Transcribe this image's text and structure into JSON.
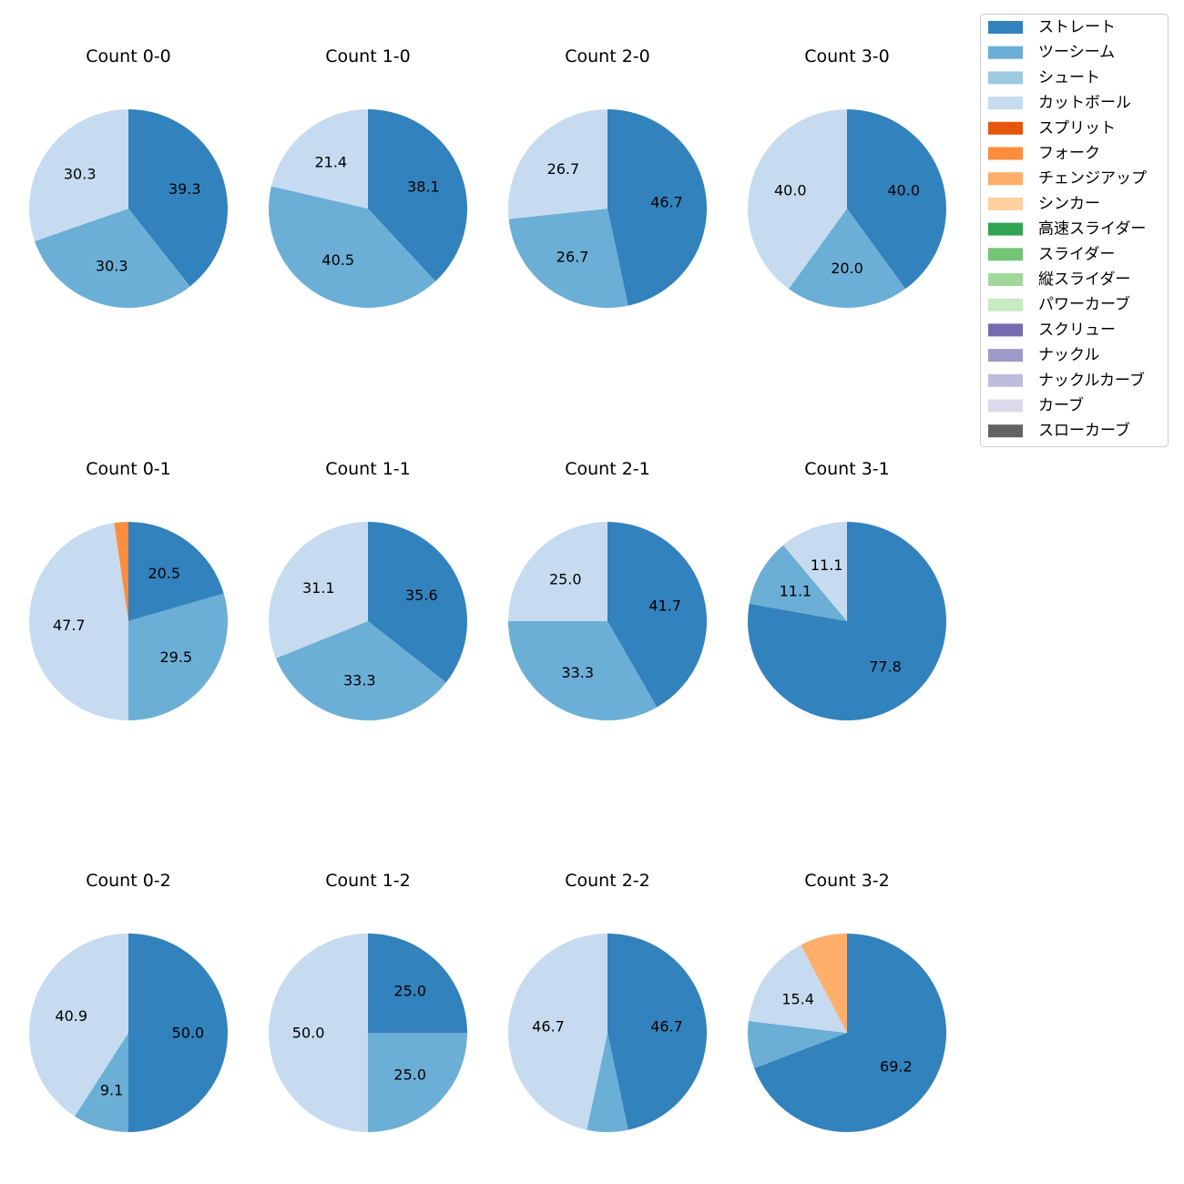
{
  "colors": {
    "ストレート": "#3182bd",
    "ツーシーム": "#6baed6",
    "シュート": "#9ecae1",
    "カットボール": "#c6dbef",
    "スプリット": "#e6550d",
    "フォーク": "#fd8d3c",
    "チェンジアップ": "#fdae6b",
    "シンカー": "#fdd0a2",
    "高速スライダー": "#31a354",
    "スライダー": "#74c476",
    "縦スライダー": "#a1d99b",
    "パワーカーブ": "#c7e9c0",
    "スクリュー": "#756bb1",
    "ナックル": "#9e9ac8",
    "ナックルカーブ": "#bcbddc",
    "カーブ": "#dadaeb",
    "スローカーブ": "#636363"
  },
  "legend": {
    "items": [
      "ストレート",
      "ツーシーム",
      "シュート",
      "カットボール",
      "スプリット",
      "フォーク",
      "チェンジアップ",
      "シンカー",
      "高速スライダー",
      "スライダー",
      "縦スライダー",
      "パワーカーブ",
      "スクリュー",
      "ナックル",
      "ナックルカーブ",
      "カーブ",
      "スローカーブ"
    ]
  },
  "chart_data": [
    {
      "type": "pie",
      "title": "Count 0-0",
      "slices": [
        {
          "label": "ストレート",
          "value": 39.3,
          "text": "39.3"
        },
        {
          "label": "ツーシーム",
          "value": 30.3,
          "text": "30.3"
        },
        {
          "label": "カットボール",
          "value": 30.3,
          "text": "30.3"
        }
      ]
    },
    {
      "type": "pie",
      "title": "Count 1-0",
      "slices": [
        {
          "label": "ストレート",
          "value": 38.1,
          "text": "38.1"
        },
        {
          "label": "ツーシーム",
          "value": 40.5,
          "text": "40.5"
        },
        {
          "label": "カットボール",
          "value": 21.4,
          "text": "21.4"
        }
      ]
    },
    {
      "type": "pie",
      "title": "Count 2-0",
      "slices": [
        {
          "label": "ストレート",
          "value": 46.7,
          "text": "46.7"
        },
        {
          "label": "ツーシーム",
          "value": 26.7,
          "text": "26.7"
        },
        {
          "label": "カットボール",
          "value": 26.7,
          "text": "26.7"
        }
      ]
    },
    {
      "type": "pie",
      "title": "Count 3-0",
      "slices": [
        {
          "label": "ストレート",
          "value": 40.0,
          "text": "40.0"
        },
        {
          "label": "ツーシーム",
          "value": 20.0,
          "text": "20.0"
        },
        {
          "label": "カットボール",
          "value": 40.0,
          "text": "40.0"
        }
      ]
    },
    {
      "type": "pie",
      "title": "Count 0-1",
      "slices": [
        {
          "label": "ストレート",
          "value": 20.5,
          "text": "20.5"
        },
        {
          "label": "ツーシーム",
          "value": 29.5,
          "text": "29.5"
        },
        {
          "label": "カットボール",
          "value": 47.7,
          "text": "47.7"
        },
        {
          "label": "フォーク",
          "value": 2.3,
          "text": ""
        }
      ]
    },
    {
      "type": "pie",
      "title": "Count 1-1",
      "slices": [
        {
          "label": "ストレート",
          "value": 35.6,
          "text": "35.6"
        },
        {
          "label": "ツーシーム",
          "value": 33.3,
          "text": "33.3"
        },
        {
          "label": "カットボール",
          "value": 31.1,
          "text": "31.1"
        }
      ]
    },
    {
      "type": "pie",
      "title": "Count 2-1",
      "slices": [
        {
          "label": "ストレート",
          "value": 41.7,
          "text": "41.7"
        },
        {
          "label": "ツーシーム",
          "value": 33.3,
          "text": "33.3"
        },
        {
          "label": "カットボール",
          "value": 25.0,
          "text": "25.0"
        }
      ]
    },
    {
      "type": "pie",
      "title": "Count 3-1",
      "slices": [
        {
          "label": "ストレート",
          "value": 77.8,
          "text": "77.8"
        },
        {
          "label": "ツーシーム",
          "value": 11.1,
          "text": "11.1"
        },
        {
          "label": "カットボール",
          "value": 11.1,
          "text": "11.1"
        }
      ]
    },
    {
      "type": "pie",
      "title": "Count 0-2",
      "slices": [
        {
          "label": "ストレート",
          "value": 50.0,
          "text": "50.0"
        },
        {
          "label": "ツーシーム",
          "value": 9.1,
          "text": "9.1"
        },
        {
          "label": "カットボール",
          "value": 40.9,
          "text": "40.9"
        }
      ]
    },
    {
      "type": "pie",
      "title": "Count 1-2",
      "slices": [
        {
          "label": "ストレート",
          "value": 25.0,
          "text": "25.0"
        },
        {
          "label": "ツーシーム",
          "value": 25.0,
          "text": "25.0"
        },
        {
          "label": "カットボール",
          "value": 50.0,
          "text": "50.0"
        }
      ]
    },
    {
      "type": "pie",
      "title": "Count 2-2",
      "slices": [
        {
          "label": "ストレート",
          "value": 46.7,
          "text": "46.7"
        },
        {
          "label": "ツーシーム",
          "value": 6.7,
          "text": ""
        },
        {
          "label": "カットボール",
          "value": 46.7,
          "text": "46.7"
        }
      ]
    },
    {
      "type": "pie",
      "title": "Count 3-2",
      "slices": [
        {
          "label": "ストレート",
          "value": 69.2,
          "text": "69.2"
        },
        {
          "label": "ツーシーム",
          "value": 7.7,
          "text": ""
        },
        {
          "label": "カットボール",
          "value": 15.4,
          "text": "15.4"
        },
        {
          "label": "チェンジアップ",
          "value": 7.7,
          "text": ""
        }
      ]
    }
  ]
}
